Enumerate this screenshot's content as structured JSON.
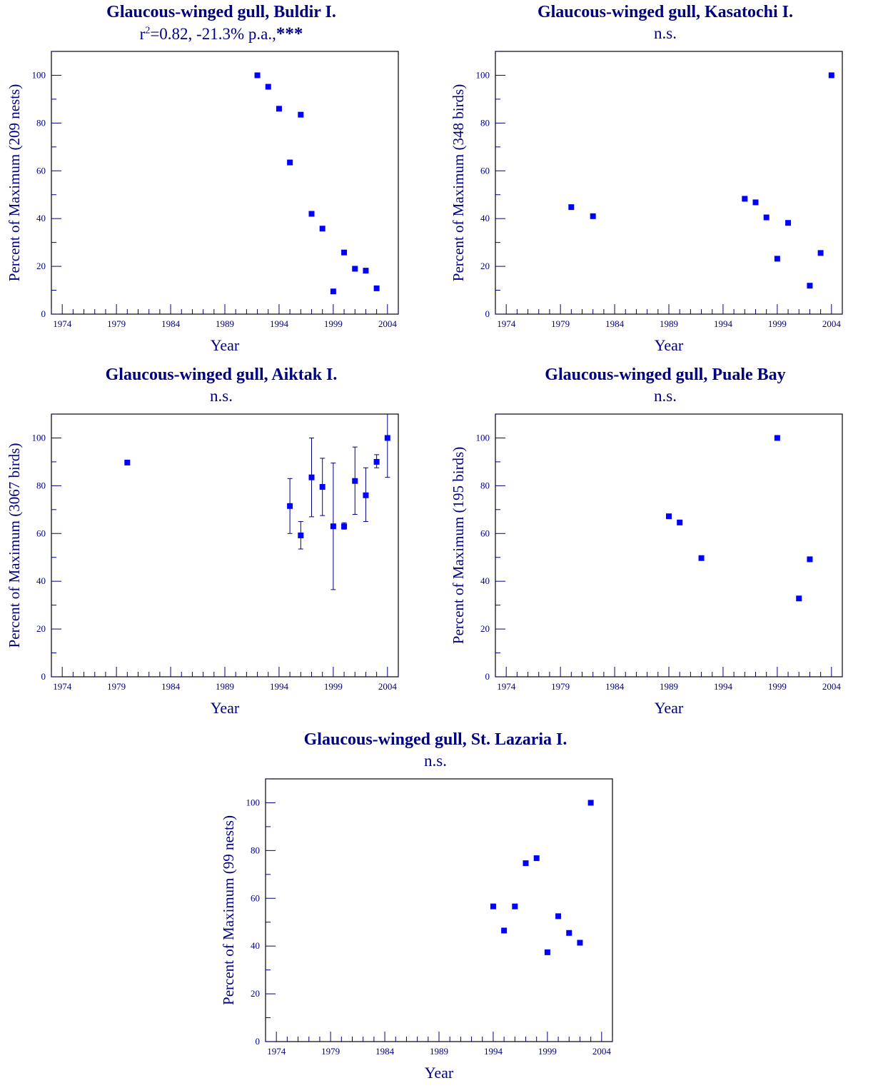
{
  "chart_data": [
    {
      "type": "scatter",
      "title": "Glaucous-winged gull, Buldir I.",
      "subtitle_parts": [
        "r",
        "2",
        "=0.82, -21.3% p.a.,",
        "***"
      ],
      "xlabel": "Year",
      "ylabel": "Percent of Maximum (209 nests)",
      "xlim": [
        1973,
        2005
      ],
      "ylim": [
        0,
        110
      ],
      "xticks": [
        "1974",
        "1979",
        "1984",
        "1989",
        "1994",
        "1999",
        "2004"
      ],
      "yticks": [
        "0",
        "20",
        "40",
        "60",
        "80",
        "100"
      ],
      "color": "#0000ff",
      "points": [
        {
          "x": 1992,
          "y": 100
        },
        {
          "x": 1993,
          "y": 95.2
        },
        {
          "x": 1994,
          "y": 86
        },
        {
          "x": 1995,
          "y": 63.5
        },
        {
          "x": 1996,
          "y": 83.5
        },
        {
          "x": 1997,
          "y": 42
        },
        {
          "x": 1998,
          "y": 35.8
        },
        {
          "x": 2000,
          "y": 25.8
        },
        {
          "x": 1999,
          "y": 9.5
        },
        {
          "x": 2001,
          "y": 19
        },
        {
          "x": 2002,
          "y": 18.2
        },
        {
          "x": 2003,
          "y": 10.8
        }
      ]
    },
    {
      "type": "scatter",
      "title": "Glaucous-winged gull, Kasatochi I.",
      "subtitle": "n.s.",
      "xlabel": "Year",
      "ylabel": "Percent of Maximum (348 birds)",
      "xlim": [
        1973,
        2005
      ],
      "ylim": [
        0,
        110
      ],
      "xticks": [
        "1974",
        "1979",
        "1984",
        "1989",
        "1994",
        "1999",
        "2004"
      ],
      "yticks": [
        "0",
        "20",
        "40",
        "60",
        "80",
        "100"
      ],
      "color": "#0000ff",
      "points": [
        {
          "x": 1980,
          "y": 44.8
        },
        {
          "x": 1982,
          "y": 41
        },
        {
          "x": 1996,
          "y": 48.3
        },
        {
          "x": 1997,
          "y": 46.8
        },
        {
          "x": 1998,
          "y": 40.5
        },
        {
          "x": 1999,
          "y": 23.2
        },
        {
          "x": 2000,
          "y": 38.2
        },
        {
          "x": 2002,
          "y": 11.9
        },
        {
          "x": 2003,
          "y": 25.6
        },
        {
          "x": 2004,
          "y": 100
        }
      ]
    },
    {
      "type": "scatter",
      "title": "Glaucous-winged gull, Aiktak I.",
      "subtitle": "n.s.",
      "xlabel": "Year",
      "ylabel": "Percent of Maximum (3067 birds)",
      "xlim": [
        1973,
        2005
      ],
      "ylim": [
        0,
        110
      ],
      "xticks": [
        "1974",
        "1979",
        "1984",
        "1989",
        "1994",
        "1999",
        "2004"
      ],
      "yticks": [
        "0",
        "20",
        "40",
        "60",
        "80",
        "100"
      ],
      "color": "#0000ff",
      "points": [
        {
          "x": 1980,
          "y": 89.7
        },
        {
          "x": 1995,
          "y": 71.5,
          "lo": 60,
          "hi": 83
        },
        {
          "x": 1996,
          "y": 59.2,
          "lo": 53.5,
          "hi": 65
        },
        {
          "x": 1997,
          "y": 83.5,
          "lo": 67,
          "hi": 100
        },
        {
          "x": 1998,
          "y": 79.5,
          "lo": 67.5,
          "hi": 91.5
        },
        {
          "x": 1999,
          "y": 63,
          "lo": 36.5,
          "hi": 89.5
        },
        {
          "x": 2000,
          "y": 63,
          "lo": 61.8,
          "hi": 64.5
        },
        {
          "x": 2001,
          "y": 82,
          "lo": 68,
          "hi": 96.2
        },
        {
          "x": 2002,
          "y": 76,
          "lo": 65,
          "hi": 87.5
        },
        {
          "x": 2003,
          "y": 90,
          "lo": 87.5,
          "hi": 93
        },
        {
          "x": 2004,
          "y": 100,
          "lo": 83.5,
          "hi": 110
        }
      ]
    },
    {
      "type": "scatter",
      "title": "Glaucous-winged gull, Puale Bay",
      "subtitle": "n.s.",
      "xlabel": "Year",
      "ylabel": "Percent of Maximum (195 birds)",
      "xlim": [
        1973,
        2005
      ],
      "ylim": [
        0,
        110
      ],
      "xticks": [
        "1974",
        "1979",
        "1984",
        "1989",
        "1994",
        "1999",
        "2004"
      ],
      "yticks": [
        "0",
        "20",
        "40",
        "60",
        "80",
        "100"
      ],
      "color": "#0000ff",
      "points": [
        {
          "x": 1989,
          "y": 67.2
        },
        {
          "x": 1990,
          "y": 64.6
        },
        {
          "x": 1992,
          "y": 49.7
        },
        {
          "x": 1999,
          "y": 100
        },
        {
          "x": 2001,
          "y": 32.8
        },
        {
          "x": 2002,
          "y": 49.2
        }
      ]
    },
    {
      "type": "scatter",
      "title": "Glaucous-winged gull, St. Lazaria I.",
      "subtitle": "n.s.",
      "xlabel": "Year",
      "ylabel": "Percent of Maximum (99 nests)",
      "xlim": [
        1973,
        2005
      ],
      "ylim": [
        0,
        110
      ],
      "xticks": [
        "1974",
        "1979",
        "1984",
        "1989",
        "1994",
        "1999",
        "2004"
      ],
      "yticks": [
        "0",
        "20",
        "40",
        "60",
        "80",
        "100"
      ],
      "color": "#0000ff",
      "points": [
        {
          "x": 1994,
          "y": 56.6
        },
        {
          "x": 1995,
          "y": 46.5
        },
        {
          "x": 1996,
          "y": 56.6
        },
        {
          "x": 1997,
          "y": 74.7
        },
        {
          "x": 1998,
          "y": 76.8
        },
        {
          "x": 1999,
          "y": 37.4
        },
        {
          "x": 2000,
          "y": 52.5
        },
        {
          "x": 2001,
          "y": 45.5
        },
        {
          "x": 2002,
          "y": 41.4
        },
        {
          "x": 2003,
          "y": 100
        }
      ]
    }
  ]
}
